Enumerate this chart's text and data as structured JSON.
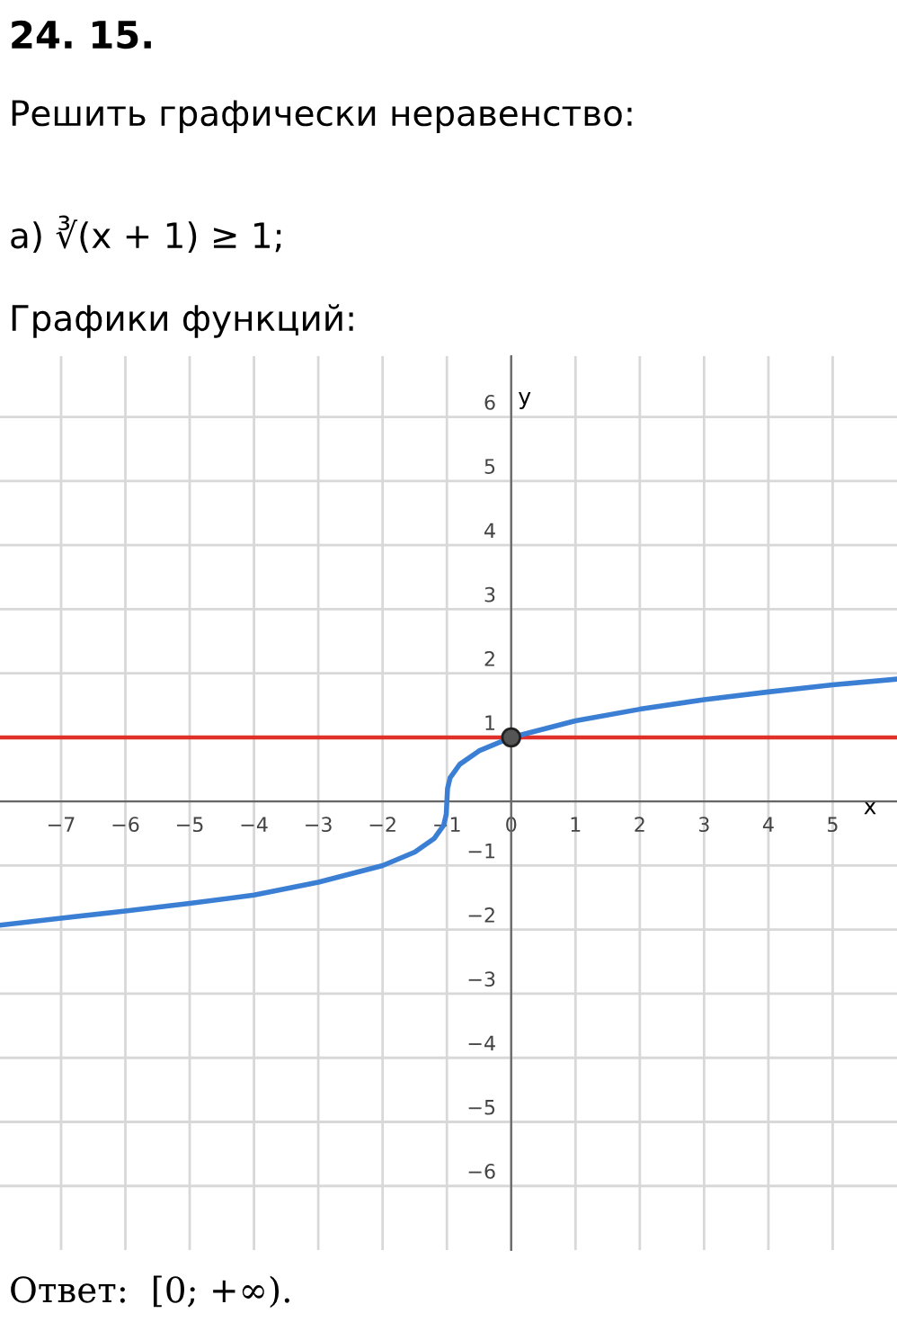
{
  "chart_data": {
    "type": "line",
    "title": "24. 15.",
    "subtitle": "Решить графически неравенство:",
    "annotations": [
      "а) ∛(x + 1) ≥ 1;",
      "Графики функций:",
      "Ответ:  [0; +∞)."
    ],
    "xlabel": "x",
    "ylabel": "y",
    "series": [
      {
        "type": "line",
        "color": "#3b7fd4",
        "x": [
          -7.95,
          -7,
          -6,
          -5,
          -4,
          -3,
          -2,
          -1.5,
          -1.2,
          -1.05,
          -1.01,
          -1,
          -0.99,
          -0.95,
          -0.8,
          -0.5,
          0,
          1,
          2,
          3,
          4,
          5,
          6
        ],
        "values": [
          -1.93,
          -1.82,
          -1.71,
          -1.59,
          -1.46,
          -1.26,
          -1.0,
          -0.79,
          -0.58,
          -0.37,
          -0.2,
          0,
          0.2,
          0.37,
          0.58,
          0.79,
          1,
          1.26,
          1.44,
          1.59,
          1.71,
          1.82,
          1.91
        ]
      },
      {
        "type": "scatter",
        "color": "#555555",
        "x": [
          0
        ],
        "values": [
          1
        ],
        "marker": "circle"
      }
    ],
    "ref_lines": [
      {
        "axis": "y",
        "value": 1,
        "label": null,
        "color": "#e0302a"
      }
    ],
    "xlim": [
      -7.95,
      6
    ],
    "ylim": [
      -7,
      6.95
    ],
    "xticks": [
      {
        "value": -7,
        "label": "−7"
      },
      {
        "value": -6,
        "label": "−6"
      },
      {
        "value": -5,
        "label": "−5"
      },
      {
        "value": -4,
        "label": "−4"
      },
      {
        "value": -3,
        "label": "−3"
      },
      {
        "value": -2,
        "label": "−2"
      },
      {
        "value": -1,
        "label": "−1"
      },
      0,
      1,
      2,
      3,
      4,
      5
    ],
    "yticks": [
      {
        "value": -6,
        "label": "−6"
      },
      {
        "value": -5,
        "label": "−5"
      },
      {
        "value": -4,
        "label": "−4"
      },
      {
        "value": -3,
        "label": "−3"
      },
      {
        "value": -2,
        "label": "−2"
      },
      {
        "value": -1,
        "label": "−1"
      },
      1,
      2,
      3,
      4,
      5,
      6
    ],
    "grid": true,
    "legend": false
  }
}
